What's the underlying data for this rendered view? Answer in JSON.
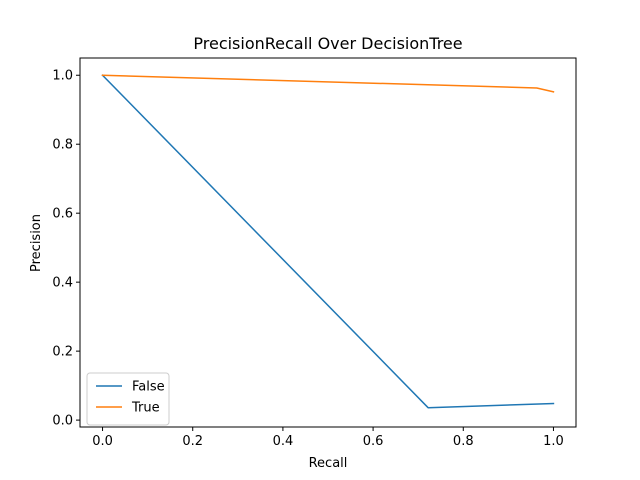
{
  "chart_data": {
    "type": "line",
    "title": "PrecisionRecall Over DecisionTree",
    "xlabel": "Recall",
    "ylabel": "Precision",
    "xlim": [
      -0.05,
      1.05
    ],
    "ylim": [
      -0.02,
      1.05
    ],
    "x_ticks": [
      0.0,
      0.2,
      0.4,
      0.6,
      0.8,
      1.0
    ],
    "x_tick_labels": [
      "0.0",
      "0.2",
      "0.4",
      "0.6",
      "0.8",
      "1.0"
    ],
    "y_ticks": [
      0.0,
      0.2,
      0.4,
      0.6,
      0.8,
      1.0
    ],
    "y_tick_labels": [
      "0.0",
      "0.2",
      "0.4",
      "0.6",
      "0.8",
      "1.0"
    ],
    "grid": false,
    "legend_position": "lower-left",
    "series": [
      {
        "name": "False",
        "color": "#1f77b4",
        "points": [
          [
            0.0,
            1.0
          ],
          [
            0.722,
            0.036
          ],
          [
            1.0,
            0.048
          ]
        ]
      },
      {
        "name": "True",
        "color": "#ff7f0e",
        "points": [
          [
            0.0,
            1.0
          ],
          [
            0.963,
            0.963
          ],
          [
            1.0,
            0.952
          ]
        ]
      }
    ]
  }
}
